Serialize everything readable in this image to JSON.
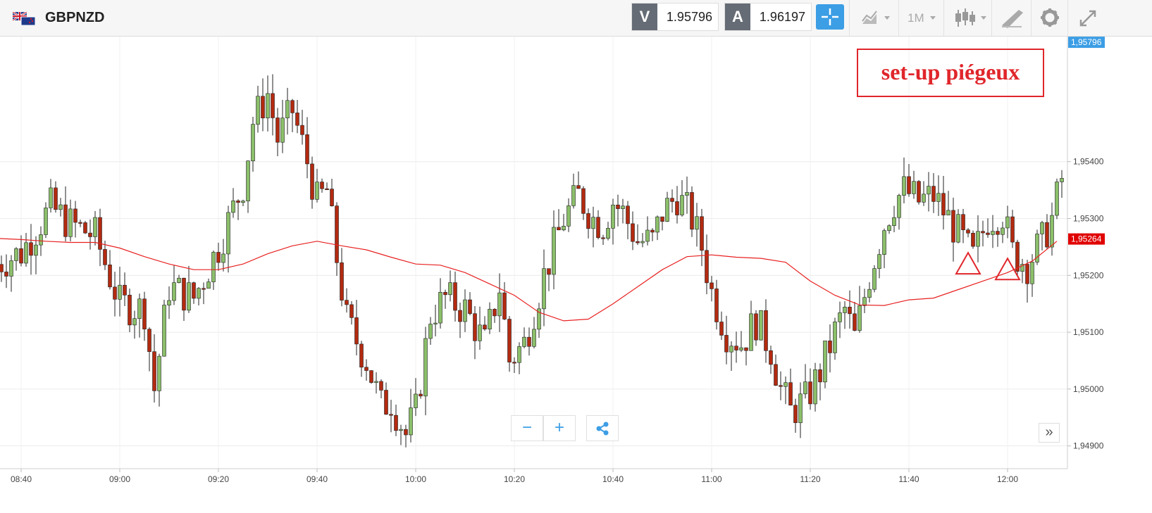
{
  "toolbar": {
    "symbol": "GBPNZD",
    "sell_letter": "V",
    "sell_price": "1.95796",
    "buy_letter": "A",
    "buy_price": "1.96197",
    "timeframe": "1M"
  },
  "annotation": {
    "text": "set-up piégeux",
    "color": "#e0262b",
    "markers": [
      {
        "time": "11:52",
        "price": 1.9522
      },
      {
        "time": "12:00",
        "price": 1.9521
      }
    ]
  },
  "colors": {
    "bull": "#8bbf69",
    "bear": "#b32a10",
    "ma": "#e82121",
    "accent": "#3c9ee5",
    "price_tag_top": "#3c9ee5",
    "price_tag_ma": "#e00000"
  },
  "chart_data": {
    "type": "candlestick",
    "symbol": "GBPNZD",
    "timeframe": "1M",
    "x_tick_labels": [
      "08:40",
      "09:00",
      "09:20",
      "09:40",
      "10:00",
      "10:20",
      "10:40",
      "11:00",
      "11:20",
      "11:40",
      "12:00"
    ],
    "y_tick_labels": [
      "1,95400",
      "1,95300",
      "1,95200",
      "1,95100",
      "1,95000",
      "1,94900"
    ],
    "y_ticks": [
      1.954,
      1.953,
      1.952,
      1.951,
      1.95,
      1.949
    ],
    "ylim": [
      1.9486,
      1.9562
    ],
    "price_tag_top": "1,95796",
    "price_tag_top_value": 1.95796,
    "price_tag_ma": "1,95264",
    "price_tag_ma_value": 1.95264,
    "grid": true,
    "close_anchors": [
      [
        "08:35",
        1.9522
      ],
      [
        "08:40",
        1.9524
      ],
      [
        "08:46",
        1.9532
      ],
      [
        "08:50",
        1.9529
      ],
      [
        "08:55",
        1.9527
      ],
      [
        "09:00",
        1.9515
      ],
      [
        "09:05",
        1.9514
      ],
      [
        "09:07",
        1.95
      ],
      [
        "09:10",
        1.9518
      ],
      [
        "09:15",
        1.9516
      ],
      [
        "09:20",
        1.9525
      ],
      [
        "09:25",
        1.9536
      ],
      [
        "09:27",
        1.9547
      ],
      [
        "09:30",
        1.9552
      ],
      [
        "09:32",
        1.9544
      ],
      [
        "09:35",
        1.9549
      ],
      [
        "09:38",
        1.954
      ],
      [
        "09:40",
        1.9533
      ],
      [
        "09:42",
        1.9535
      ],
      [
        "09:44",
        1.9523
      ],
      [
        "09:46",
        1.9512
      ],
      [
        "09:50",
        1.9505
      ],
      [
        "09:53",
        1.9497
      ],
      [
        "09:55",
        1.9498
      ],
      [
        "09:58",
        1.9492
      ],
      [
        "10:00",
        1.9496
      ],
      [
        "10:03",
        1.9513
      ],
      [
        "10:06",
        1.9516
      ],
      [
        "10:10",
        1.9514
      ],
      [
        "10:14",
        1.9508
      ],
      [
        "10:17",
        1.9518
      ],
      [
        "10:19",
        1.9505
      ],
      [
        "10:22",
        1.9508
      ],
      [
        "10:26",
        1.952
      ],
      [
        "10:30",
        1.953
      ],
      [
        "10:33",
        1.9534
      ],
      [
        "10:36",
        1.953
      ],
      [
        "10:38",
        1.9529
      ],
      [
        "10:40",
        1.9533
      ],
      [
        "10:42",
        1.9531
      ],
      [
        "10:45",
        1.9526
      ],
      [
        "10:48",
        1.9526
      ],
      [
        "10:50",
        1.9531
      ],
      [
        "10:53",
        1.9534
      ],
      [
        "10:56",
        1.953
      ],
      [
        "10:58",
        1.9525
      ],
      [
        "11:00",
        1.9517
      ],
      [
        "11:03",
        1.951
      ],
      [
        "11:06",
        1.9508
      ],
      [
        "11:09",
        1.9512
      ],
      [
        "11:12",
        1.9507
      ],
      [
        "11:14",
        1.95
      ],
      [
        "11:16",
        1.9496
      ],
      [
        "11:19",
        1.9498
      ],
      [
        "11:22",
        1.9503
      ],
      [
        "11:25",
        1.951
      ],
      [
        "11:27",
        1.9514
      ],
      [
        "11:29",
        1.9509
      ],
      [
        "11:32",
        1.952
      ],
      [
        "11:35",
        1.9529
      ],
      [
        "11:37",
        1.9533
      ],
      [
        "11:39",
        1.9535
      ],
      [
        "11:42",
        1.9533
      ],
      [
        "11:45",
        1.9534
      ],
      [
        "11:48",
        1.953
      ],
      [
        "11:51",
        1.9526
      ],
      [
        "11:53",
        1.9523
      ],
      [
        "11:56",
        1.953
      ],
      [
        "11:59",
        1.9531
      ],
      [
        "12:01",
        1.9524
      ],
      [
        "12:04",
        1.9522
      ],
      [
        "12:07",
        1.9526
      ],
      [
        "12:09",
        1.953
      ],
      [
        "12:11",
        1.9537
      ]
    ],
    "series": [
      {
        "name": "",
        "type": "line",
        "points": [
          [
            "08:35",
            1.95265
          ],
          [
            "08:40",
            1.95263
          ],
          [
            "08:45",
            1.9526
          ],
          [
            "08:50",
            1.95258
          ],
          [
            "08:55",
            1.95258
          ],
          [
            "09:00",
            1.95248
          ],
          [
            "09:05",
            1.95233
          ],
          [
            "09:10",
            1.9522
          ],
          [
            "09:15",
            1.9521
          ],
          [
            "09:20",
            1.9521
          ],
          [
            "09:25",
            1.9522
          ],
          [
            "09:30",
            1.95238
          ],
          [
            "09:35",
            1.95252
          ],
          [
            "09:40",
            1.9526
          ],
          [
            "09:45",
            1.95252
          ],
          [
            "09:50",
            1.95245
          ],
          [
            "09:55",
            1.95232
          ],
          [
            "10:00",
            1.9522
          ],
          [
            "10:05",
            1.95218
          ],
          [
            "10:10",
            1.95205
          ],
          [
            "10:15",
            1.95185
          ],
          [
            "10:20",
            1.95165
          ],
          [
            "10:25",
            1.95135
          ],
          [
            "10:30",
            1.9512
          ],
          [
            "10:35",
            1.95123
          ],
          [
            "10:40",
            1.9515
          ],
          [
            "10:45",
            1.9518
          ],
          [
            "10:50",
            1.9521
          ],
          [
            "10:55",
            1.95233
          ],
          [
            "11:00",
            1.95236
          ],
          [
            "11:05",
            1.95232
          ],
          [
            "11:10",
            1.9523
          ],
          [
            "11:15",
            1.95223
          ],
          [
            "11:20",
            1.9519
          ],
          [
            "11:25",
            1.95165
          ],
          [
            "11:30",
            1.95148
          ],
          [
            "11:35",
            1.95147
          ],
          [
            "11:40",
            1.95157
          ],
          [
            "11:45",
            1.9516
          ],
          [
            "11:50",
            1.95175
          ],
          [
            "11:55",
            1.9519
          ],
          [
            "12:00",
            1.95205
          ],
          [
            "12:05",
            1.95225
          ],
          [
            "12:10",
            1.9526
          ]
        ]
      }
    ]
  }
}
